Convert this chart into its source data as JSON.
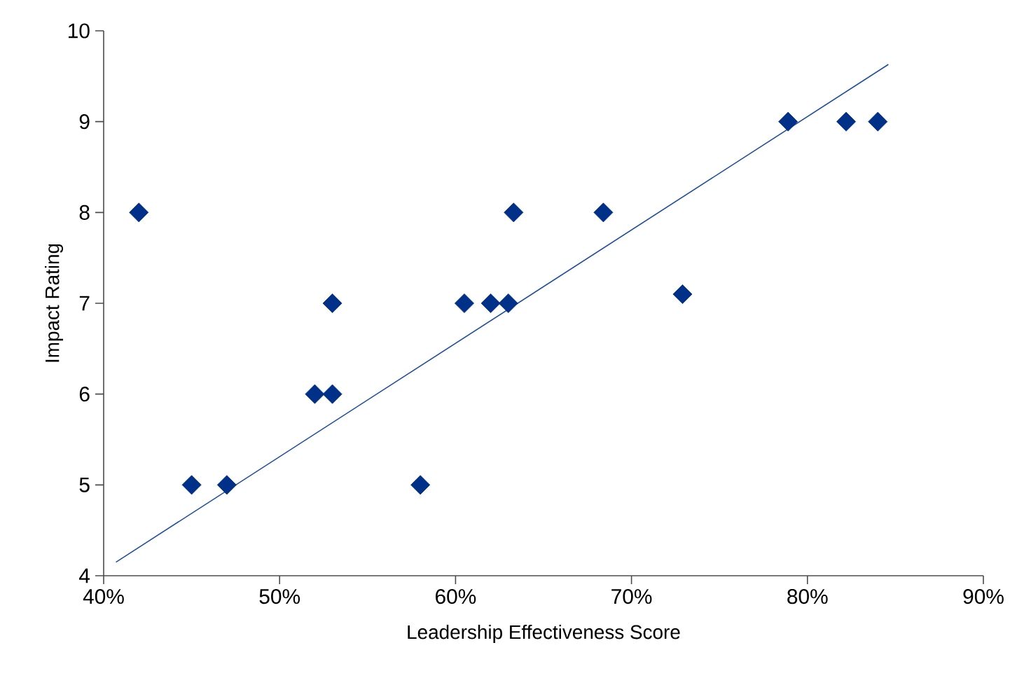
{
  "chart_data": {
    "type": "scatter",
    "xlabel": "Leadership Effectiveness Score",
    "ylabel": "Impact Rating",
    "xlim": [
      40,
      90
    ],
    "ylim": [
      4,
      10
    ],
    "xticks": [
      {
        "value": 40,
        "label": "40%"
      },
      {
        "value": 50,
        "label": "50%"
      },
      {
        "value": 60,
        "label": "60%"
      },
      {
        "value": 70,
        "label": "70%"
      },
      {
        "value": 80,
        "label": "80%"
      },
      {
        "value": 90,
        "label": "90%"
      }
    ],
    "yticks": [
      4,
      5,
      6,
      7,
      8,
      9,
      10
    ],
    "grid": false,
    "marker": "diamond",
    "series": [
      {
        "color": "#003087",
        "x": [
          42,
          45,
          47,
          52,
          53,
          53,
          58,
          60.5,
          62,
          63,
          63.3,
          68.4,
          72.9,
          78.9,
          82.2,
          84
        ],
        "values": [
          8,
          5,
          5,
          6,
          6,
          7,
          5,
          7,
          7,
          7,
          8,
          8,
          7.1,
          9,
          9,
          9
        ]
      },
      {
        "type": "line",
        "color": "#1f4ea0",
        "line_style": "solid",
        "marker": "none",
        "x": [
          40.7,
          84.6
        ],
        "values": [
          4.15,
          9.63
        ]
      }
    ]
  }
}
